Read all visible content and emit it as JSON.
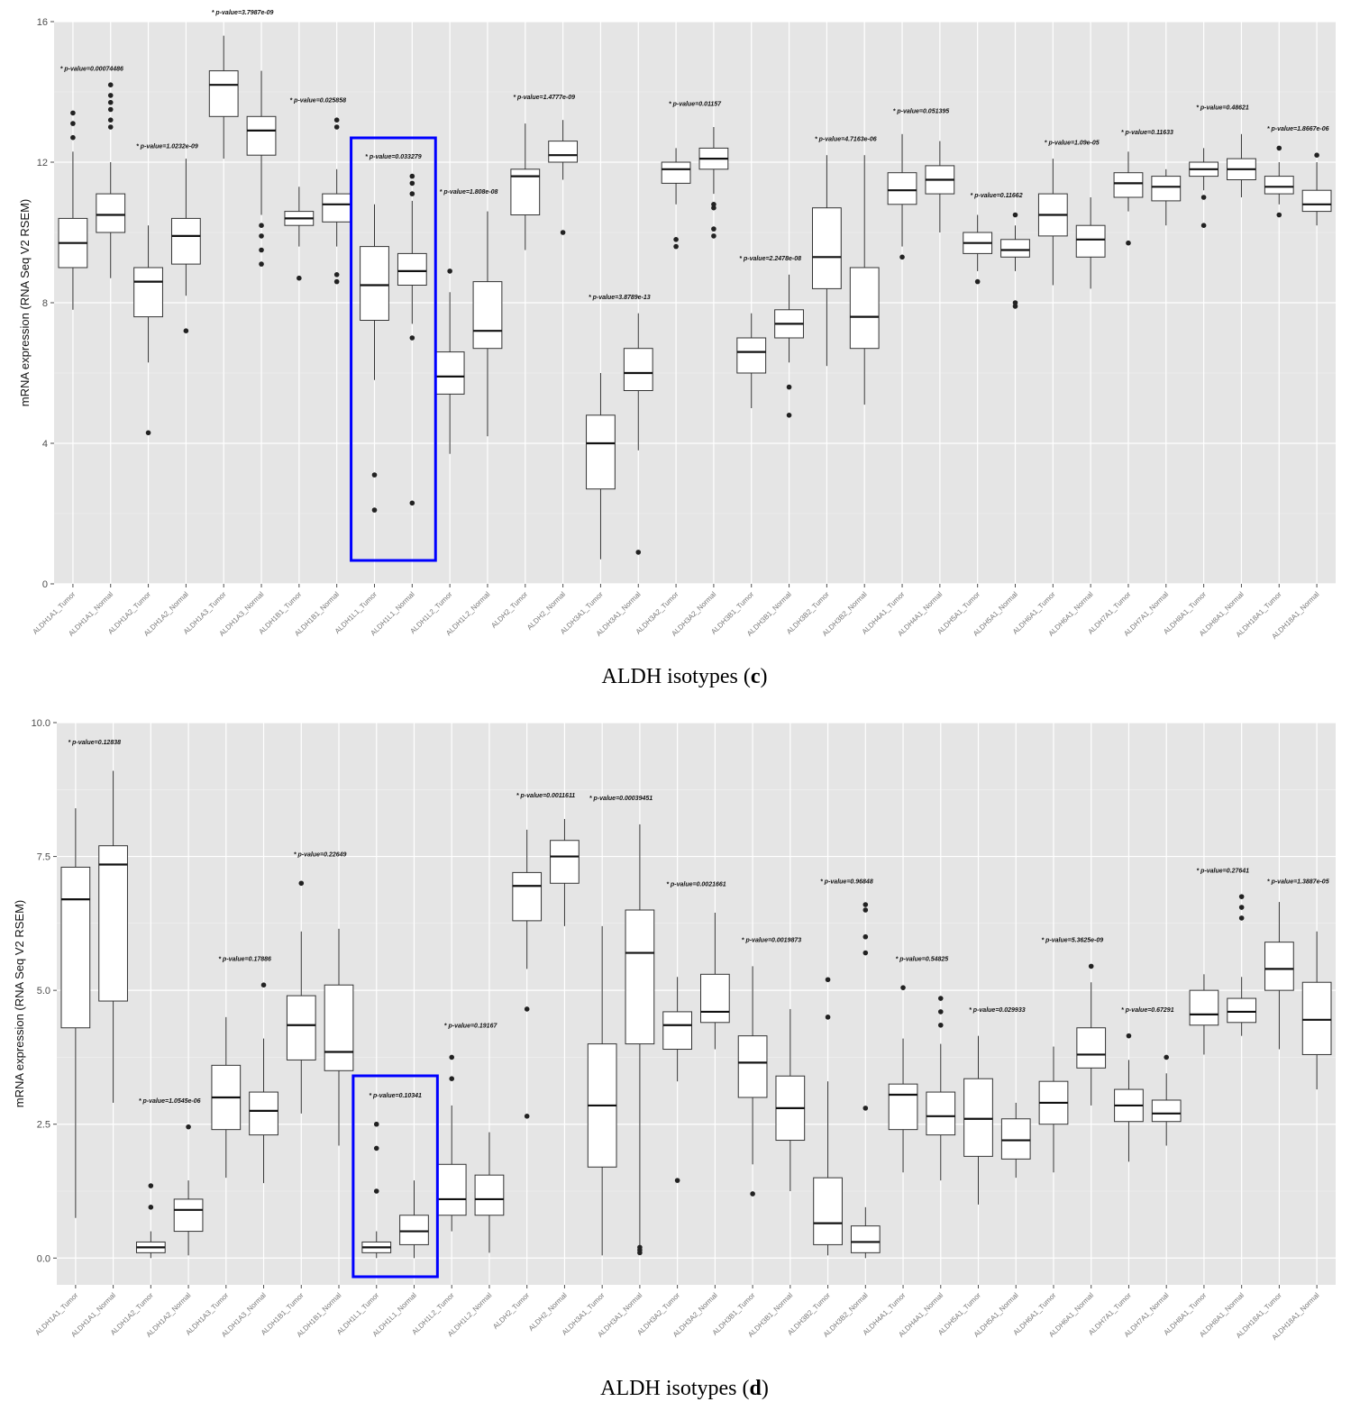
{
  "captions": [
    {
      "text": "ALDH isotypes (",
      "letter": "c",
      "close": ")"
    },
    {
      "text": "ALDH isotypes (",
      "letter": "d",
      "close": ")"
    }
  ],
  "chart_data": [
    {
      "type": "box",
      "ylabel": "mRNA expression (RNA Seq V2 RSEM)",
      "ylim": [
        0,
        16
      ],
      "yticks": [
        "0",
        "4",
        "8",
        "12",
        "16"
      ],
      "ytick_values": [
        0,
        4,
        8,
        12,
        16
      ],
      "grid": true,
      "highlight_categories": [
        "ALDH1L1_Tumor",
        "ALDH1L1_Normal"
      ],
      "highlight_color": "#0000ff",
      "categories": [
        "ALDH1A1_Tumor",
        "ALDH1A1_Normal",
        "ALDH1A2_Tumor",
        "ALDH1A2_Normal",
        "ALDH1A3_Tumor",
        "ALDH1A3_Normal",
        "ALDH1B1_Tumor",
        "ALDH1B1_Normal",
        "ALDH1L1_Tumor",
        "ALDH1L1_Normal",
        "ALDH1L2_Tumor",
        "ALDH1L2_Normal",
        "ALDH2_Tumor",
        "ALDH2_Normal",
        "ALDH3A1_Tumor",
        "ALDH3A1_Normal",
        "ALDH3A2_Tumor",
        "ALDH3A2_Normal",
        "ALDH3B1_Tumor",
        "ALDH3B1_Normal",
        "ALDH3B2_Tumor",
        "ALDH3B2_Normal",
        "ALDH4A1_Tumor",
        "ALDH4A1_Normal",
        "ALDH5A1_Tumor",
        "ALDH5A1_Normal",
        "ALDH6A1_Tumor",
        "ALDH6A1_Normal",
        "ALDH7A1_Tumor",
        "ALDH7A1_Normal",
        "ALDH8A1_Tumor",
        "ALDH8A1_Normal",
        "ALDH18A1_Tumor",
        "ALDH18A1_Normal"
      ],
      "boxes": [
        {
          "min": 7.8,
          "q1": 9.0,
          "median": 9.7,
          "q3": 10.4,
          "max": 12.3,
          "outliers": [
            12.7,
            13.1,
            13.4
          ]
        },
        {
          "min": 8.7,
          "q1": 10.0,
          "median": 10.5,
          "q3": 11.1,
          "max": 12.0,
          "outliers": [
            13.0,
            13.2,
            13.5,
            13.7,
            13.9,
            14.2
          ]
        },
        {
          "min": 6.3,
          "q1": 7.6,
          "median": 8.6,
          "q3": 9.0,
          "max": 10.2,
          "outliers": [
            4.3
          ]
        },
        {
          "min": 8.2,
          "q1": 9.1,
          "median": 9.9,
          "q3": 10.4,
          "max": 12.1,
          "outliers": [
            7.2
          ]
        },
        {
          "min": 12.1,
          "q1": 13.3,
          "median": 14.2,
          "q3": 14.6,
          "max": 15.6,
          "outliers": []
        },
        {
          "min": 10.5,
          "q1": 12.2,
          "median": 12.9,
          "q3": 13.3,
          "max": 14.6,
          "outliers": [
            9.1,
            9.5,
            9.9,
            10.2
          ]
        },
        {
          "min": 9.6,
          "q1": 10.2,
          "median": 10.4,
          "q3": 10.6,
          "max": 11.3,
          "outliers": [
            8.7
          ]
        },
        {
          "min": 9.6,
          "q1": 10.3,
          "median": 10.8,
          "q3": 11.1,
          "max": 11.8,
          "outliers": [
            8.6,
            8.8,
            13.0,
            13.2
          ]
        },
        {
          "min": 5.8,
          "q1": 7.5,
          "median": 8.5,
          "q3": 9.6,
          "max": 10.8,
          "outliers": [
            2.1,
            3.1
          ]
        },
        {
          "min": 7.4,
          "q1": 8.5,
          "median": 8.9,
          "q3": 9.4,
          "max": 10.9,
          "outliers": [
            2.3,
            7.0,
            11.1,
            11.4,
            11.6
          ]
        },
        {
          "min": 3.7,
          "q1": 5.4,
          "median": 5.9,
          "q3": 6.6,
          "max": 8.3,
          "outliers": [
            8.9
          ]
        },
        {
          "min": 4.2,
          "q1": 6.7,
          "median": 7.2,
          "q3": 8.6,
          "max": 10.6,
          "outliers": []
        },
        {
          "min": 9.5,
          "q1": 10.5,
          "median": 11.6,
          "q3": 11.8,
          "max": 13.1,
          "outliers": []
        },
        {
          "min": 11.5,
          "q1": 12.0,
          "median": 12.2,
          "q3": 12.6,
          "max": 13.2,
          "outliers": [
            10.0
          ]
        },
        {
          "min": 0.7,
          "q1": 2.7,
          "median": 4.0,
          "q3": 4.8,
          "max": 6.0,
          "outliers": []
        },
        {
          "min": 3.8,
          "q1": 5.5,
          "median": 6.0,
          "q3": 6.7,
          "max": 7.7,
          "outliers": [
            0.9
          ]
        },
        {
          "min": 10.8,
          "q1": 11.4,
          "median": 11.8,
          "q3": 12.0,
          "max": 12.4,
          "outliers": [
            9.6,
            9.8
          ]
        },
        {
          "min": 11.1,
          "q1": 11.8,
          "median": 12.1,
          "q3": 12.4,
          "max": 13.0,
          "outliers": [
            9.9,
            10.1,
            10.7,
            10.8
          ]
        },
        {
          "min": 5.0,
          "q1": 6.0,
          "median": 6.6,
          "q3": 7.0,
          "max": 7.7,
          "outliers": []
        },
        {
          "min": 6.3,
          "q1": 7.0,
          "median": 7.4,
          "q3": 7.8,
          "max": 8.8,
          "outliers": [
            4.8,
            5.6
          ]
        },
        {
          "min": 6.2,
          "q1": 8.4,
          "median": 9.3,
          "q3": 10.7,
          "max": 12.2,
          "outliers": []
        },
        {
          "min": 5.1,
          "q1": 6.7,
          "median": 7.6,
          "q3": 9.0,
          "max": 12.2,
          "outliers": []
        },
        {
          "min": 9.6,
          "q1": 10.8,
          "median": 11.2,
          "q3": 11.7,
          "max": 12.8,
          "outliers": [
            9.3
          ]
        },
        {
          "min": 10.0,
          "q1": 11.1,
          "median": 11.5,
          "q3": 11.9,
          "max": 12.6,
          "outliers": []
        },
        {
          "min": 8.9,
          "q1": 9.4,
          "median": 9.7,
          "q3": 10.0,
          "max": 10.5,
          "outliers": [
            8.6
          ]
        },
        {
          "min": 8.9,
          "q1": 9.3,
          "median": 9.5,
          "q3": 9.8,
          "max": 10.2,
          "outliers": [
            7.9,
            8.0,
            10.5
          ]
        },
        {
          "min": 8.5,
          "q1": 9.9,
          "median": 10.5,
          "q3": 11.1,
          "max": 12.1,
          "outliers": []
        },
        {
          "min": 8.4,
          "q1": 9.3,
          "median": 9.8,
          "q3": 10.2,
          "max": 11.0,
          "outliers": []
        },
        {
          "min": 10.6,
          "q1": 11.0,
          "median": 11.4,
          "q3": 11.7,
          "max": 12.3,
          "outliers": [
            9.7
          ]
        },
        {
          "min": 10.2,
          "q1": 10.9,
          "median": 11.3,
          "q3": 11.6,
          "max": 11.8,
          "outliers": []
        },
        {
          "min": 11.2,
          "q1": 11.6,
          "median": 11.8,
          "q3": 12.0,
          "max": 12.4,
          "outliers": [
            10.2,
            11.0
          ]
        },
        {
          "min": 11.0,
          "q1": 11.5,
          "median": 11.8,
          "q3": 12.1,
          "max": 12.8,
          "outliers": []
        },
        {
          "min": 10.8,
          "q1": 11.1,
          "median": 11.3,
          "q3": 11.6,
          "max": 12.0,
          "outliers": [
            10.5,
            12.4
          ]
        },
        {
          "min": 10.2,
          "q1": 10.6,
          "median": 10.8,
          "q3": 11.2,
          "max": 12.0,
          "outliers": [
            12.2
          ]
        }
      ],
      "annotations": [
        {
          "text": "* p-value=0.00074486",
          "pair": 0,
          "y": 14.6
        },
        {
          "text": "* p-value=1.0232e-09",
          "pair": 1,
          "y": 12.4
        },
        {
          "text": "* p-value=3.7987e-09",
          "pair": 2,
          "y": 16.2
        },
        {
          "text": "* p-value=0.025858",
          "pair": 3,
          "y": 13.7
        },
        {
          "text": "* p-value=0.033279",
          "pair": 4,
          "y": 12.1
        },
        {
          "text": "* p-value=1.808e-08",
          "pair": 5,
          "y": 11.1
        },
        {
          "text": "* p-value=1.4777e-09",
          "pair": 6,
          "y": 13.8
        },
        {
          "text": "* p-value=3.8789e-13",
          "pair": 7,
          "y": 8.1
        },
        {
          "text": "* p-value=0.01157",
          "pair": 8,
          "y": 13.6
        },
        {
          "text": "* p-value=2.2478e-08",
          "pair": 9,
          "y": 9.2
        },
        {
          "text": "* p-value=4.7163e-06",
          "pair": 10,
          "y": 12.6
        },
        {
          "text": "* p-value=0.051395",
          "pair": 11,
          "y": 13.4
        },
        {
          "text": "* p-value=0.11662",
          "pair": 12,
          "y": 11.0
        },
        {
          "text": "* p-value=1.09e-05",
          "pair": 13,
          "y": 12.5
        },
        {
          "text": "* p-value=0.11633",
          "pair": 14,
          "y": 12.8
        },
        {
          "text": "* p-value=0.48621",
          "pair": 15,
          "y": 13.5
        },
        {
          "text": "* p-value=1.8667e-06",
          "pair": 16,
          "y": 12.9
        }
      ]
    },
    {
      "type": "box",
      "ylabel": "mRNA expression (RNA Seq V2 RSEM)",
      "ylim": [
        -0.5,
        10
      ],
      "yticks": [
        "0.0",
        "2.5",
        "5.0",
        "7.5",
        "10.0"
      ],
      "ytick_values": [
        0,
        2.5,
        5,
        7.5,
        10
      ],
      "grid": true,
      "highlight_categories": [
        "ALDH1L1_Tumor",
        "ALDH1L1_Normal"
      ],
      "highlight_color": "#0000ff",
      "categories": [
        "ALDH1A1_Tumor",
        "ALDH1A1_Normal",
        "ALDH1A2_Tumor",
        "ALDH1A2_Normal",
        "ALDH1A3_Tumor",
        "ALDH1A3_Normal",
        "ALDH1B1_Tumor",
        "ALDH1B1_Normal",
        "ALDH1L1_Tumor",
        "ALDH1L1_Normal",
        "ALDH1L2_Tumor",
        "ALDH1L2_Normal",
        "ALDH2_Tumor",
        "ALDH2_Normal",
        "ALDH3A1_Tumor",
        "ALDH3A1_Normal",
        "ALDH3A2_Tumor",
        "ALDH3A2_Normal",
        "ALDH3B1_Tumor",
        "ALDH3B1_Normal",
        "ALDH3B2_Tumor",
        "ALDH3B2_Normal",
        "ALDH4A1_Tumor",
        "ALDH4A1_Normal",
        "ALDH5A1_Tumor",
        "ALDH5A1_Normal",
        "ALDH6A1_Tumor",
        "ALDH6A1_Normal",
        "ALDH7A1_Tumor",
        "ALDH7A1_Normal",
        "ALDH8A1_Tumor",
        "ALDH8A1_Normal",
        "ALDH18A1_Tumor",
        "ALDH18A1_Normal"
      ],
      "boxes": [
        {
          "min": 0.75,
          "q1": 4.3,
          "median": 6.7,
          "q3": 7.3,
          "max": 8.4,
          "outliers": []
        },
        {
          "min": 2.9,
          "q1": 4.8,
          "median": 7.35,
          "q3": 7.7,
          "max": 9.1,
          "outliers": []
        },
        {
          "min": 0.0,
          "q1": 0.1,
          "median": 0.2,
          "q3": 0.3,
          "max": 0.5,
          "outliers": [
            0.95,
            1.35
          ]
        },
        {
          "min": 0.05,
          "q1": 0.5,
          "median": 0.9,
          "q3": 1.1,
          "max": 1.45,
          "outliers": [
            2.45
          ]
        },
        {
          "min": 1.5,
          "q1": 2.4,
          "median": 3.0,
          "q3": 3.6,
          "max": 4.5,
          "outliers": []
        },
        {
          "min": 1.4,
          "q1": 2.3,
          "median": 2.75,
          "q3": 3.1,
          "max": 4.1,
          "outliers": [
            5.1
          ]
        },
        {
          "min": 2.7,
          "q1": 3.7,
          "median": 4.35,
          "q3": 4.9,
          "max": 6.1,
          "outliers": [
            7.0
          ]
        },
        {
          "min": 2.1,
          "q1": 3.5,
          "median": 3.85,
          "q3": 5.1,
          "max": 6.15,
          "outliers": []
        },
        {
          "min": 0.0,
          "q1": 0.1,
          "median": 0.2,
          "q3": 0.3,
          "max": 0.5,
          "outliers": [
            1.25,
            2.05,
            2.5
          ]
        },
        {
          "min": 0.0,
          "q1": 0.25,
          "median": 0.5,
          "q3": 0.8,
          "max": 1.45,
          "outliers": []
        },
        {
          "min": 0.5,
          "q1": 0.8,
          "median": 1.1,
          "q3": 1.75,
          "max": 2.85,
          "outliers": [
            3.35,
            3.75
          ]
        },
        {
          "min": 0.1,
          "q1": 0.8,
          "median": 1.1,
          "q3": 1.55,
          "max": 2.35,
          "outliers": []
        },
        {
          "min": 5.4,
          "q1": 6.3,
          "median": 6.95,
          "q3": 7.2,
          "max": 8.0,
          "outliers": [
            2.65,
            4.65
          ]
        },
        {
          "min": 6.2,
          "q1": 7.0,
          "median": 7.5,
          "q3": 7.8,
          "max": 8.2,
          "outliers": []
        },
        {
          "min": 0.05,
          "q1": 1.7,
          "median": 2.85,
          "q3": 4.0,
          "max": 6.2,
          "outliers": []
        },
        {
          "min": 0.15,
          "q1": 4.0,
          "median": 5.7,
          "q3": 6.5,
          "max": 8.1,
          "outliers": [
            0.1,
            0.15,
            0.2
          ]
        },
        {
          "min": 3.3,
          "q1": 3.9,
          "median": 4.35,
          "q3": 4.6,
          "max": 5.25,
          "outliers": [
            1.45
          ]
        },
        {
          "min": 3.9,
          "q1": 4.4,
          "median": 4.6,
          "q3": 5.3,
          "max": 6.45,
          "outliers": []
        },
        {
          "min": 1.75,
          "q1": 3.0,
          "median": 3.65,
          "q3": 4.15,
          "max": 5.45,
          "outliers": [
            1.2
          ]
        },
        {
          "min": 1.25,
          "q1": 2.2,
          "median": 2.8,
          "q3": 3.4,
          "max": 4.65,
          "outliers": []
        },
        {
          "min": 0.05,
          "q1": 0.25,
          "median": 0.65,
          "q3": 1.5,
          "max": 3.3,
          "outliers": [
            4.5,
            5.2
          ]
        },
        {
          "min": 0.0,
          "q1": 0.1,
          "median": 0.3,
          "q3": 0.6,
          "max": 0.95,
          "outliers": [
            2.8,
            5.7,
            6.0,
            6.5,
            6.6
          ]
        },
        {
          "min": 1.6,
          "q1": 2.4,
          "median": 3.05,
          "q3": 3.25,
          "max": 4.1,
          "outliers": [
            5.05
          ]
        },
        {
          "min": 1.45,
          "q1": 2.3,
          "median": 2.65,
          "q3": 3.1,
          "max": 4.0,
          "outliers": [
            4.35,
            4.6,
            4.85
          ]
        },
        {
          "min": 1.0,
          "q1": 1.9,
          "median": 2.6,
          "q3": 3.35,
          "max": 4.15,
          "outliers": []
        },
        {
          "min": 1.5,
          "q1": 1.85,
          "median": 2.2,
          "q3": 2.6,
          "max": 2.9,
          "outliers": []
        },
        {
          "min": 1.6,
          "q1": 2.5,
          "median": 2.9,
          "q3": 3.3,
          "max": 3.95,
          "outliers": []
        },
        {
          "min": 2.85,
          "q1": 3.55,
          "median": 3.8,
          "q3": 4.3,
          "max": 5.15,
          "outliers": [
            5.45
          ]
        },
        {
          "min": 1.8,
          "q1": 2.55,
          "median": 2.85,
          "q3": 3.15,
          "max": 3.7,
          "outliers": [
            4.15
          ]
        },
        {
          "min": 2.1,
          "q1": 2.55,
          "median": 2.7,
          "q3": 2.95,
          "max": 3.45,
          "outliers": [
            3.75
          ]
        },
        {
          "min": 3.8,
          "q1": 4.35,
          "median": 4.55,
          "q3": 5.0,
          "max": 5.3,
          "outliers": []
        },
        {
          "min": 4.15,
          "q1": 4.4,
          "median": 4.6,
          "q3": 4.85,
          "max": 5.25,
          "outliers": [
            6.35,
            6.55,
            6.75
          ]
        },
        {
          "min": 3.9,
          "q1": 5.0,
          "median": 5.4,
          "q3": 5.9,
          "max": 6.65,
          "outliers": []
        },
        {
          "min": 3.15,
          "q1": 3.8,
          "median": 4.45,
          "q3": 5.15,
          "max": 6.1,
          "outliers": []
        }
      ],
      "annotations": [
        {
          "text": "* p-value=0.12838",
          "pair": 0,
          "y": 9.6
        },
        {
          "text": "* p-value=1.0545e-06",
          "pair": 1,
          "y": 2.9
        },
        {
          "text": "* p-value=0.17886",
          "pair": 2,
          "y": 5.55
        },
        {
          "text": "* p-value=0.22649",
          "pair": 3,
          "y": 7.5
        },
        {
          "text": "* p-value=0.10341",
          "pair": 4,
          "y": 3.0
        },
        {
          "text": "* p-value=0.19167",
          "pair": 5,
          "y": 4.3
        },
        {
          "text": "* p-value=0.0011611",
          "pair": 6,
          "y": 8.6
        },
        {
          "text": "* p-value=0.00039451",
          "pair": 7,
          "y": 8.55
        },
        {
          "text": "* p-value=0.0021661",
          "pair": 8,
          "y": 6.95
        },
        {
          "text": "* p-value=0.0019873",
          "pair": 9,
          "y": 5.9
        },
        {
          "text": "* p-value=0.96848",
          "pair": 10,
          "y": 7.0
        },
        {
          "text": "* p-value=0.54825",
          "pair": 11,
          "y": 5.55
        },
        {
          "text": "* p-value=0.029933",
          "pair": 12,
          "y": 4.6
        },
        {
          "text": "* p-value=5.3625e-09",
          "pair": 13,
          "y": 5.9
        },
        {
          "text": "* p-value=0.67291",
          "pair": 14,
          "y": 4.6
        },
        {
          "text": "* p-value=0.27641",
          "pair": 15,
          "y": 7.2
        },
        {
          "text": "* p-value=1.3887e-05",
          "pair": 16,
          "y": 7.0
        }
      ]
    }
  ]
}
